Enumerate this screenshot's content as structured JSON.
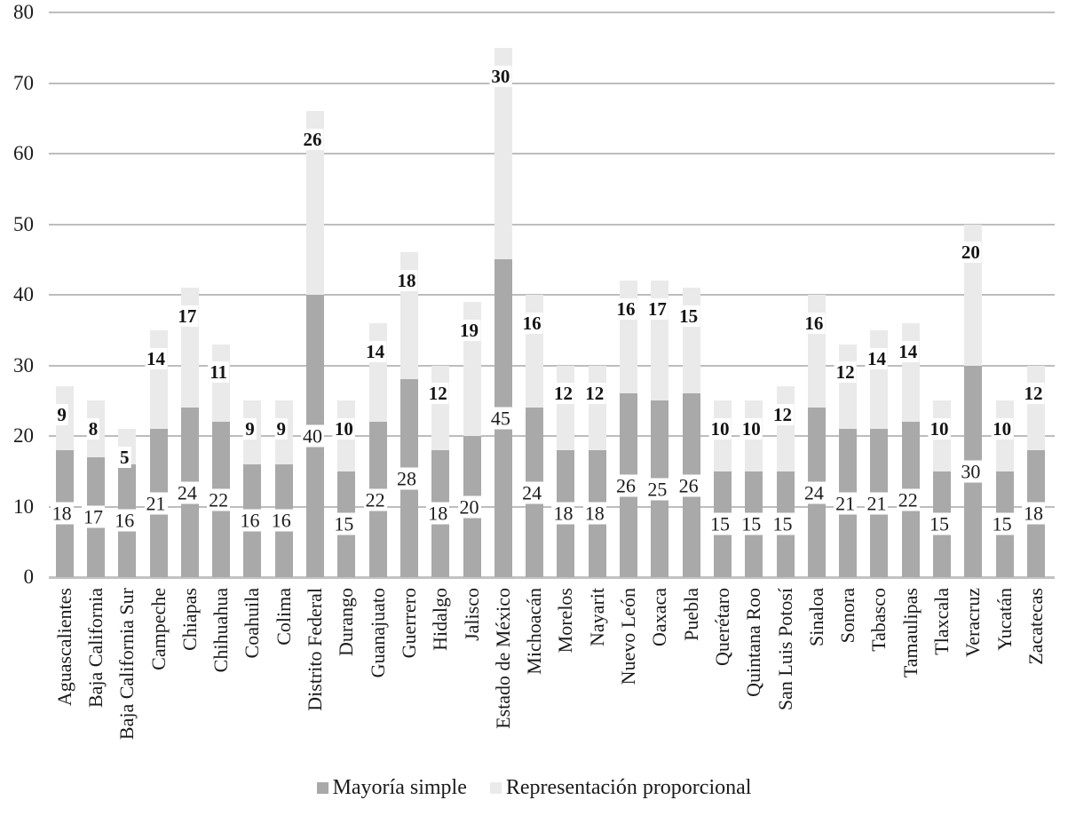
{
  "chart_data": {
    "type": "bar",
    "stacked": true,
    "title": "",
    "xlabel": "",
    "ylabel": "",
    "ylim": [
      0,
      80
    ],
    "yticks": [
      0,
      10,
      20,
      30,
      40,
      50,
      60,
      70,
      80
    ],
    "grid": true,
    "legend_position": "bottom",
    "categories": [
      "Aguascalientes",
      "Baja California",
      "Baja California Sur",
      "Campeche",
      "Chiapas",
      "Chihuahua",
      "Coahuila",
      "Colima",
      "Distrito Federal",
      "Durango",
      "Guanajuato",
      "Guerrero",
      "Hidalgo",
      "Jalisco",
      "Estado de México",
      "Michoacán",
      "Morelos",
      "Nayarit",
      "Nuevo León",
      "Oaxaca",
      "Puebla",
      "Querétaro",
      "Quintana Roo",
      "San Luis Potosí",
      "Sinaloa",
      "Sonora",
      "Tabasco",
      "Tamaulipas",
      "Tlaxcala",
      "Veracruz",
      "Yucatán",
      "Zacatecas"
    ],
    "series": [
      {
        "name": "Mayoría simple",
        "color": "#a9a9a9",
        "values": [
          18,
          17,
          16,
          21,
          24,
          22,
          16,
          16,
          40,
          15,
          22,
          28,
          18,
          20,
          45,
          24,
          18,
          18,
          26,
          25,
          26,
          15,
          15,
          15,
          24,
          21,
          21,
          22,
          15,
          30,
          15,
          18
        ]
      },
      {
        "name": "Representación proporcional",
        "color": "#eaeaea",
        "values": [
          9,
          8,
          5,
          14,
          17,
          11,
          9,
          9,
          26,
          10,
          14,
          18,
          12,
          19,
          30,
          16,
          12,
          12,
          16,
          17,
          15,
          10,
          10,
          12,
          16,
          12,
          14,
          14,
          10,
          20,
          10,
          12
        ]
      }
    ],
    "colors": {
      "gridline": "#bdbdbd",
      "axis_line": "#c2c2c2",
      "text": "#1b1b1b",
      "label_background": "#ffffff",
      "background": "#ffffff"
    },
    "data_label_styles": {
      "mayoria_simple": "regular, white box, centered in dark segment",
      "representacion_proporcional": "bold, white box, near top of stacked bar"
    }
  }
}
